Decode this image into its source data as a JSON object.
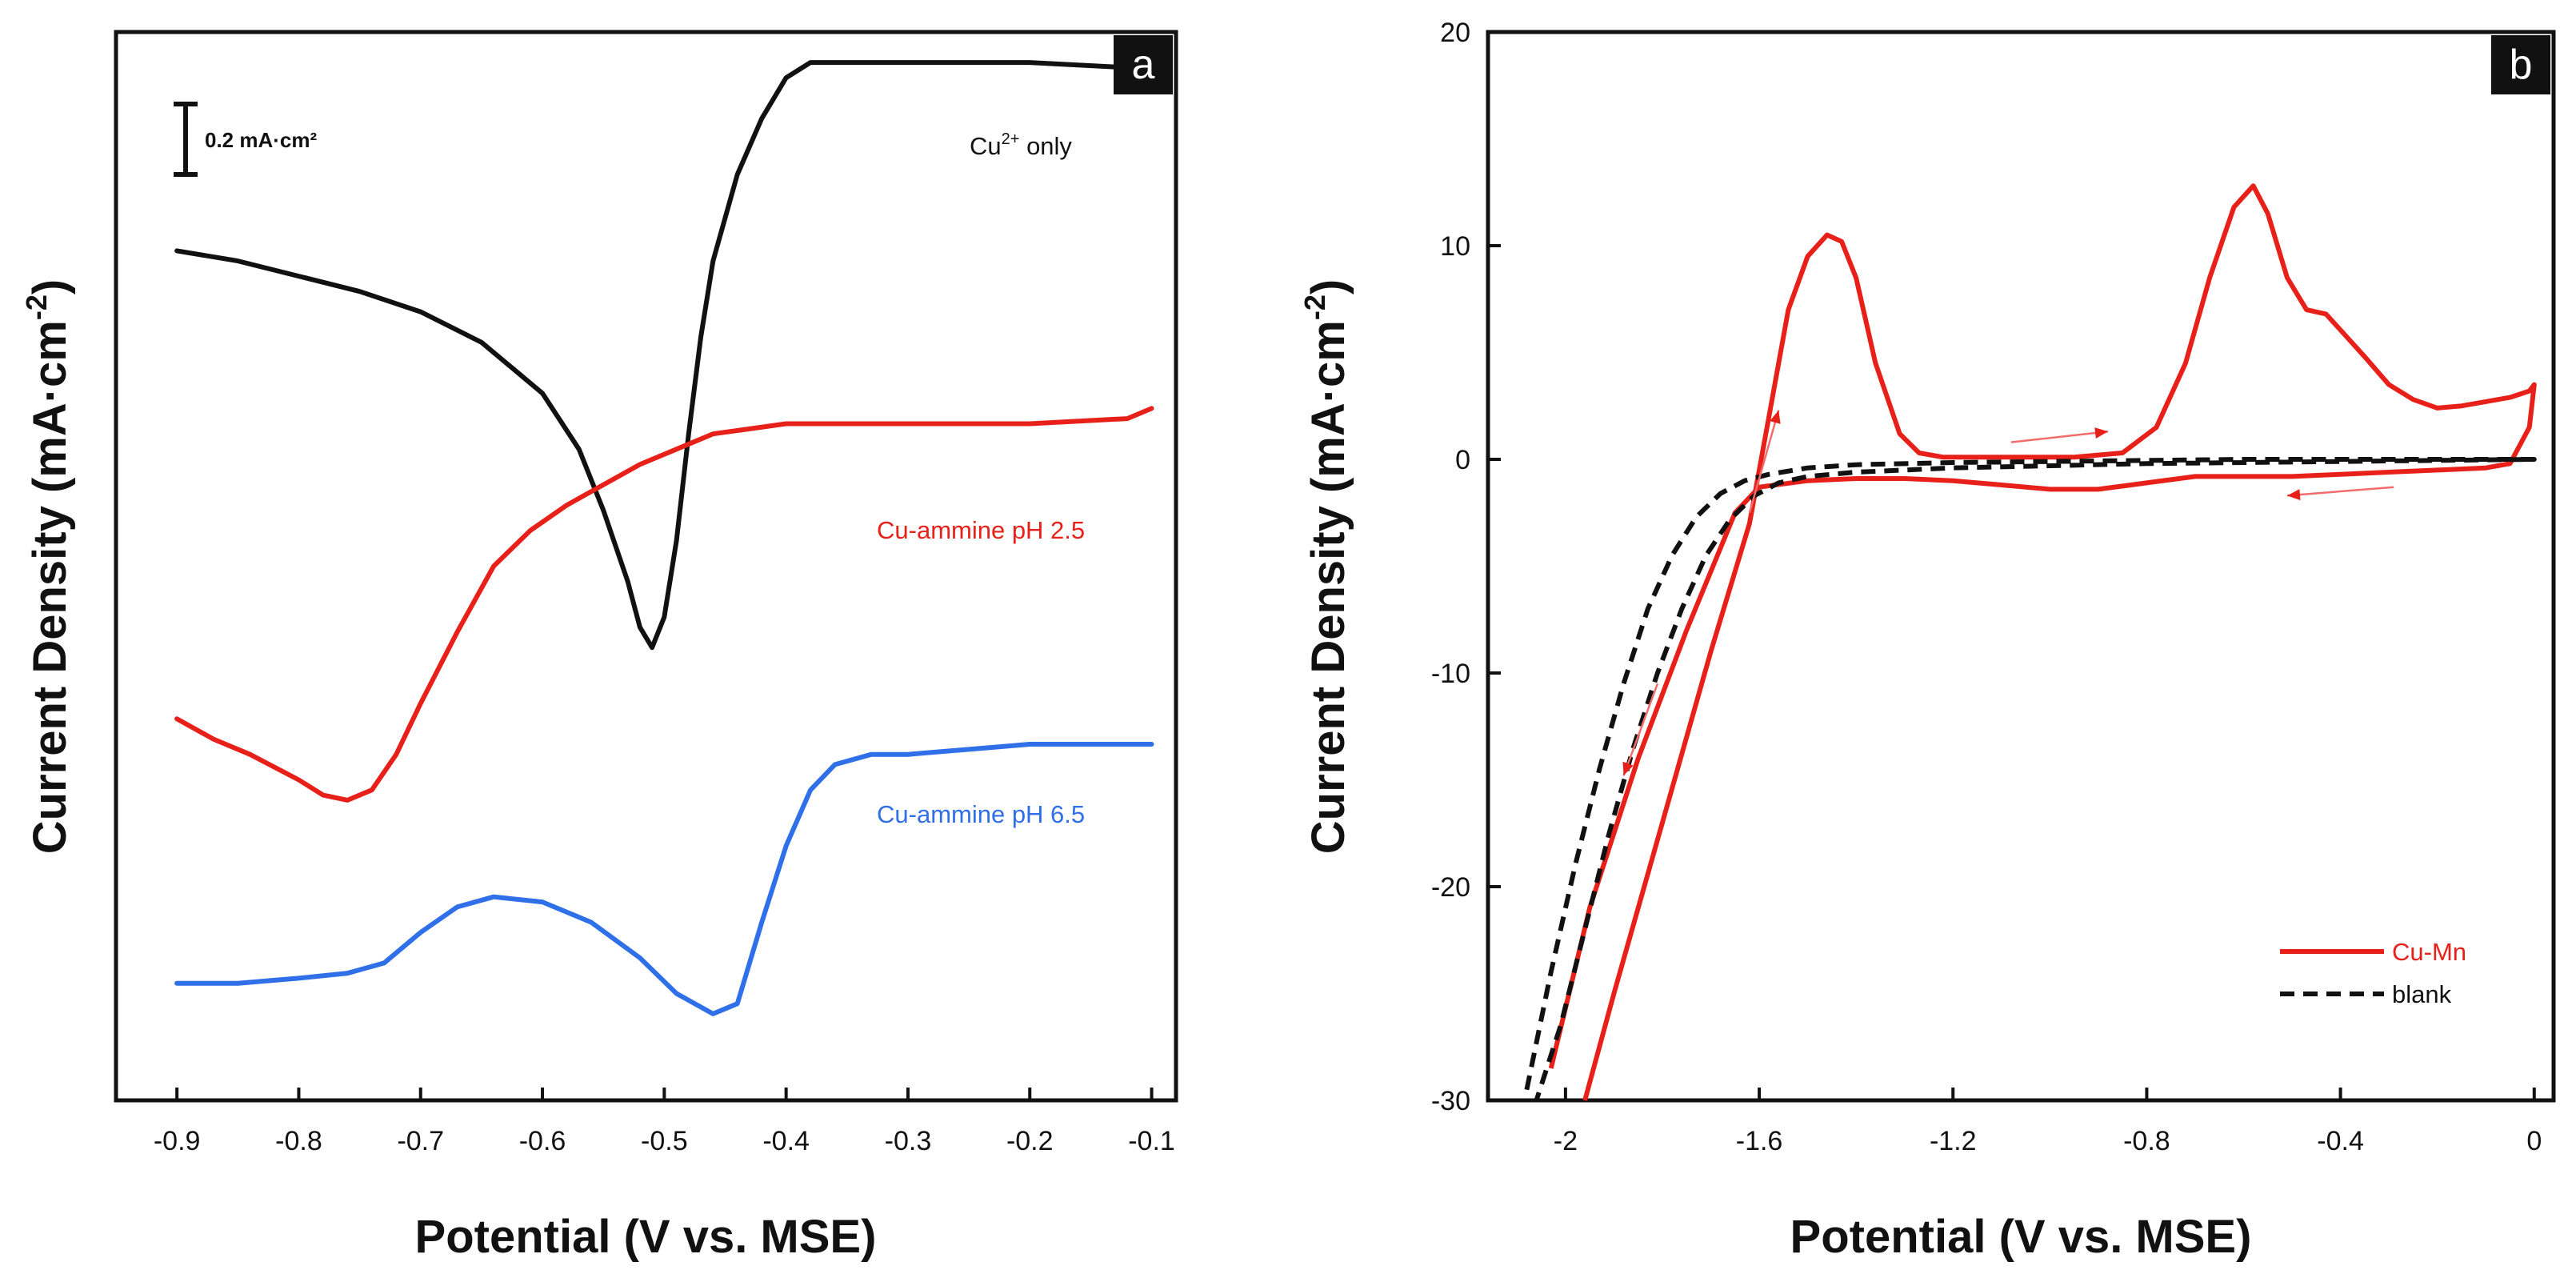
{
  "chart_data": [
    {
      "panel": "a",
      "type": "line",
      "xlabel": "Potential (V vs. MSE)",
      "ylabel": "Current Density (mA·cm",
      "ylabel_sup": "-2",
      "ylabel_tail": ")",
      "xlim": [
        -0.95,
        -0.08
      ],
      "x_ticks": [
        "-0.9",
        "-0.8",
        "-0.7",
        "-0.6",
        "-0.5",
        "-0.4",
        "-0.3",
        "-0.2",
        "-0.1"
      ],
      "x_tick_values": [
        -0.9,
        -0.8,
        -0.7,
        -0.6,
        -0.5,
        -0.4,
        -0.3,
        -0.2,
        -0.1
      ],
      "y_units": "offset (stacked curves, no y tick labels)",
      "ylim": [
        -2.05,
        0.05
      ],
      "scale_bar": {
        "label": "0.2 mA·cm²",
        "value": 0.2
      },
      "series": [
        {
          "name": "Cu²⁺ only",
          "color": "#111111",
          "x": [
            -0.9,
            -0.85,
            -0.8,
            -0.75,
            -0.7,
            -0.65,
            -0.6,
            -0.57,
            -0.55,
            -0.53,
            -0.52,
            -0.51,
            -0.5,
            -0.49,
            -0.48,
            -0.47,
            -0.46,
            -0.44,
            -0.42,
            -0.4,
            -0.38,
            -0.36,
            -0.3,
            -0.2,
            -0.12,
            -0.1
          ],
          "y": [
            -0.38,
            -0.4,
            -0.43,
            -0.46,
            -0.5,
            -0.56,
            -0.66,
            -0.77,
            -0.89,
            -1.03,
            -1.12,
            -1.16,
            -1.1,
            -0.95,
            -0.74,
            -0.55,
            -0.4,
            -0.23,
            -0.12,
            -0.04,
            -0.01,
            -0.01,
            -0.01,
            -0.01,
            -0.02,
            -0.04
          ]
        },
        {
          "name": "Cu-ammine pH 2.5",
          "color": "#e8201a",
          "x": [
            -0.9,
            -0.87,
            -0.84,
            -0.8,
            -0.78,
            -0.76,
            -0.74,
            -0.72,
            -0.7,
            -0.67,
            -0.64,
            -0.61,
            -0.58,
            -0.55,
            -0.52,
            -0.49,
            -0.46,
            -0.43,
            -0.4,
            -0.35,
            -0.3,
            -0.2,
            -0.12,
            -0.1
          ],
          "y": [
            -1.3,
            -1.34,
            -1.37,
            -1.42,
            -1.45,
            -1.46,
            -1.44,
            -1.37,
            -1.27,
            -1.13,
            -1.0,
            -0.93,
            -0.88,
            -0.84,
            -0.8,
            -0.77,
            -0.74,
            -0.73,
            -0.72,
            -0.72,
            -0.72,
            -0.72,
            -0.71,
            -0.69
          ]
        },
        {
          "name": "Cu-ammine pH 6.5",
          "color": "#2f6fe8",
          "x": [
            -0.9,
            -0.85,
            -0.8,
            -0.76,
            -0.73,
            -0.7,
            -0.67,
            -0.64,
            -0.6,
            -0.56,
            -0.52,
            -0.49,
            -0.46,
            -0.44,
            -0.42,
            -0.4,
            -0.38,
            -0.36,
            -0.33,
            -0.3,
            -0.25,
            -0.2,
            -0.15,
            -0.1
          ],
          "y": [
            -1.82,
            -1.82,
            -1.81,
            -1.8,
            -1.78,
            -1.72,
            -1.67,
            -1.65,
            -1.66,
            -1.7,
            -1.77,
            -1.84,
            -1.88,
            -1.86,
            -1.7,
            -1.55,
            -1.44,
            -1.39,
            -1.37,
            -1.37,
            -1.36,
            -1.35,
            -1.35,
            -1.35
          ]
        }
      ]
    },
    {
      "panel": "b",
      "type": "line",
      "xlabel": "Potential (V vs. MSE)",
      "ylabel": "Current Density (mA·cm",
      "ylabel_sup": "-2",
      "ylabel_tail": ")",
      "xlim": [
        -2.16,
        0.04
      ],
      "ylim": [
        -30,
        20
      ],
      "x_ticks": [
        "-2",
        "-1.6",
        "-1.2",
        "-0.8",
        "-0.4",
        "0"
      ],
      "x_tick_values": [
        -2,
        -1.6,
        -1.2,
        -0.8,
        -0.4,
        0
      ],
      "y_ticks": [
        "-30",
        "-20",
        "-10",
        "0",
        "10",
        "20"
      ],
      "y_tick_values": [
        -30,
        -20,
        -10,
        0,
        10,
        20
      ],
      "legend_position": "bottom-right",
      "series": [
        {
          "name": "Cu-Mn",
          "color": "#e8201a",
          "dash": "solid",
          "x": [
            -1.96,
            -1.9,
            -1.8,
            -1.7,
            -1.62,
            -1.58,
            -1.54,
            -1.5,
            -1.46,
            -1.43,
            -1.4,
            -1.36,
            -1.31,
            -1.27,
            -1.22,
            -1.15,
            -1.05,
            -0.95,
            -0.85,
            -0.78,
            -0.72,
            -0.67,
            -0.62,
            -0.58,
            -0.55,
            -0.51,
            -0.47,
            -0.43,
            -0.39,
            -0.35,
            -0.3,
            -0.25,
            -0.2,
            -0.15,
            -0.1,
            -0.05,
            -0.01,
            0.0,
            -0.01,
            -0.05,
            -0.1,
            -0.2,
            -0.3,
            -0.4,
            -0.5,
            -0.6,
            -0.7,
            -0.8,
            -0.9,
            -1.0,
            -1.1,
            -1.2,
            -1.3,
            -1.4,
            -1.5,
            -1.6,
            -1.65,
            -1.75,
            -1.85,
            -1.95,
            -2.03
          ],
          "y": [
            -30,
            -25,
            -17,
            -9,
            -3,
            2,
            7,
            9.5,
            10.5,
            10.2,
            8.5,
            4.5,
            1.2,
            0.3,
            0.1,
            0.1,
            0.1,
            0.1,
            0.3,
            1.5,
            4.5,
            8.5,
            11.8,
            12.8,
            11.5,
            8.5,
            7.0,
            6.8,
            5.8,
            4.8,
            3.5,
            2.8,
            2.4,
            2.5,
            2.7,
            2.9,
            3.2,
            3.5,
            1.5,
            -0.2,
            -0.4,
            -0.5,
            -0.6,
            -0.7,
            -0.8,
            -0.8,
            -0.8,
            -1.1,
            -1.4,
            -1.4,
            -1.2,
            -1.0,
            -0.9,
            -0.9,
            -1.0,
            -1.3,
            -2.5,
            -8,
            -14,
            -21,
            -28.5
          ]
        },
        {
          "name": "blank",
          "color": "#111111",
          "dash": "dashed",
          "x": [
            -2.08,
            -2.03,
            -1.98,
            -1.93,
            -1.88,
            -1.83,
            -1.78,
            -1.73,
            -1.68,
            -1.63,
            -1.58,
            -1.5,
            -1.4,
            -1.2,
            -1.0,
            -0.8,
            -0.6,
            -0.4,
            -0.2,
            0.0,
            -0.2,
            -0.4,
            -0.6,
            -0.8,
            -1.0,
            -1.2,
            -1.4,
            -1.5,
            -1.56,
            -1.61,
            -1.66,
            -1.71,
            -1.76,
            -1.81,
            -1.86,
            -1.91,
            -1.96,
            -2.01,
            -2.06
          ],
          "y": [
            -29.5,
            -24,
            -19,
            -14.5,
            -10.5,
            -7,
            -4.5,
            -2.7,
            -1.6,
            -1.0,
            -0.7,
            -0.4,
            -0.25,
            -0.15,
            -0.1,
            -0.05,
            0.0,
            0.0,
            0.0,
            0.0,
            -0.05,
            -0.1,
            -0.15,
            -0.2,
            -0.3,
            -0.4,
            -0.6,
            -0.8,
            -1.1,
            -1.7,
            -2.8,
            -4.5,
            -7,
            -10,
            -13.5,
            -17.5,
            -22,
            -26.5,
            -30
          ]
        }
      ],
      "arrows": [
        {
          "from": [
            -1.62,
            -2.5
          ],
          "to": [
            -1.56,
            2.3
          ]
        },
        {
          "from": [
            -1.08,
            0.8
          ],
          "to": [
            -0.88,
            1.3
          ]
        },
        {
          "from": [
            -0.29,
            -1.3
          ],
          "to": [
            -0.51,
            -1.7
          ]
        },
        {
          "from": [
            -1.81,
            -10.5
          ],
          "to": [
            -1.88,
            -14.8
          ]
        }
      ]
    }
  ],
  "panel_a": {
    "letter": "a",
    "labels": {
      "cu_only_base": "Cu",
      "cu_only_sup": "2+",
      "cu_only_tail": " only",
      "ph25": "Cu-ammine pH 2.5",
      "ph65": "Cu-ammine pH 6.5"
    },
    "scale_label": "0.2 mA·cm²"
  },
  "panel_b": {
    "letter": "b",
    "legend": {
      "cumn": "Cu-Mn",
      "blank": "blank"
    }
  }
}
